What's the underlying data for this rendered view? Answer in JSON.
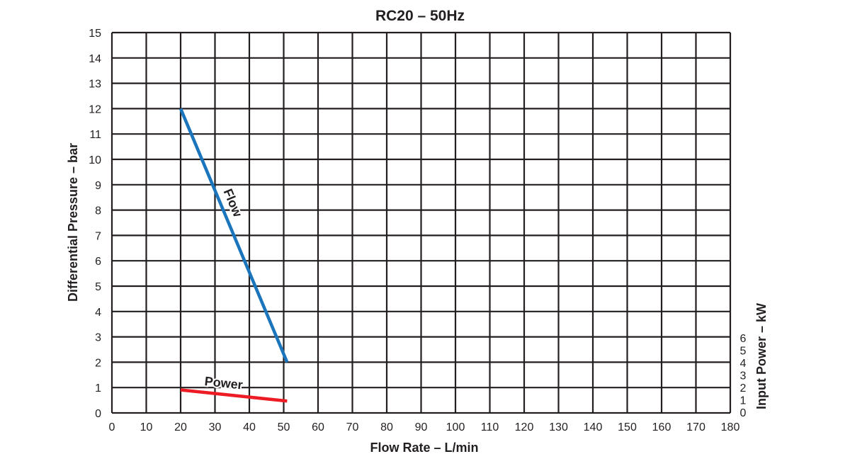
{
  "chart_data": {
    "type": "line",
    "title": "RC20 – 50Hz",
    "xlabel": "Flow Rate – L/min",
    "ylabel": "Differential Pressure – bar",
    "y2label": "Input Power – kW",
    "xlim": [
      0,
      180
    ],
    "ylim": [
      0,
      15
    ],
    "y2lim": [
      0,
      6
    ],
    "xticks": [
      0,
      10,
      20,
      30,
      40,
      50,
      60,
      70,
      80,
      90,
      100,
      110,
      120,
      130,
      140,
      150,
      160,
      170,
      180
    ],
    "yticks": [
      0,
      1,
      2,
      3,
      4,
      5,
      6,
      7,
      8,
      9,
      10,
      11,
      12,
      13,
      14,
      15
    ],
    "y2ticks": [
      0,
      1,
      2,
      3,
      4,
      5,
      6
    ],
    "grid": true,
    "series": [
      {
        "name": "Flow",
        "axis": "left",
        "color": "#1a75bc",
        "x": [
          20,
          51
        ],
        "y": [
          12,
          2
        ]
      },
      {
        "name": "Power",
        "axis": "right",
        "color": "#ed1c24",
        "x": [
          20,
          51
        ],
        "y": [
          1.8,
          0.9
        ]
      }
    ]
  }
}
